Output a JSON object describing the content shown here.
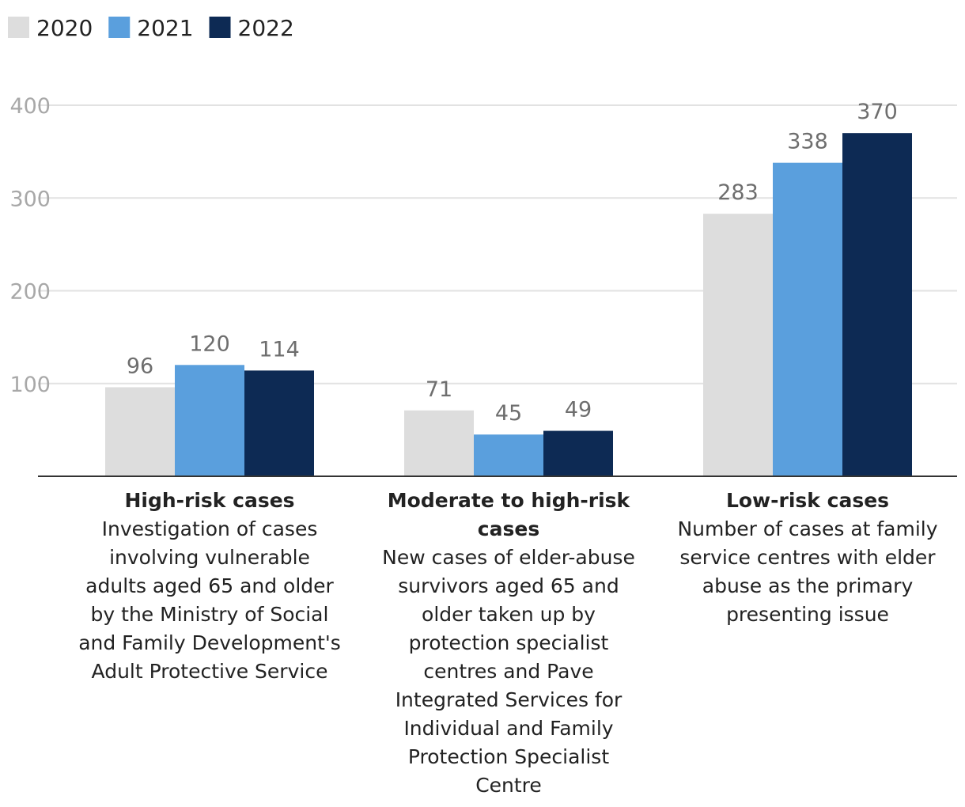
{
  "chart_data": {
    "type": "bar",
    "title": "",
    "xlabel": "",
    "ylabel": "",
    "ylim": [
      0,
      400
    ],
    "yticks": [
      100,
      200,
      300,
      400
    ],
    "grid": true,
    "legend_position": "top-left",
    "categories": [
      {
        "title_lines": [
          "High-risk cases"
        ],
        "desc_lines": [
          "Investigation of cases",
          "involving vulnerable",
          "adults aged 65 and older",
          "by the Ministry of Social",
          "and Family Development's",
          "Adult Protective Service"
        ]
      },
      {
        "title_lines": [
          "Moderate to high-risk",
          "cases"
        ],
        "desc_lines": [
          "New cases of elder-abuse",
          "survivors aged 65 and",
          "older taken up by",
          "protection specialist",
          "centres and Pave",
          "Integrated Services for",
          "Individual and Family",
          "Protection Specialist",
          "Centre"
        ]
      },
      {
        "title_lines": [
          "Low-risk cases"
        ],
        "desc_lines": [
          "Number of cases at family",
          "service centres with elder",
          "abuse as the primary",
          "presenting issue"
        ]
      }
    ],
    "series": [
      {
        "name": "2020",
        "color": "#dddddd",
        "values": [
          96,
          71,
          283
        ]
      },
      {
        "name": "2021",
        "color": "#5a9fdd",
        "values": [
          120,
          45,
          338
        ]
      },
      {
        "name": "2022",
        "color": "#0d2a54",
        "values": [
          114,
          49,
          370
        ]
      }
    ]
  }
}
